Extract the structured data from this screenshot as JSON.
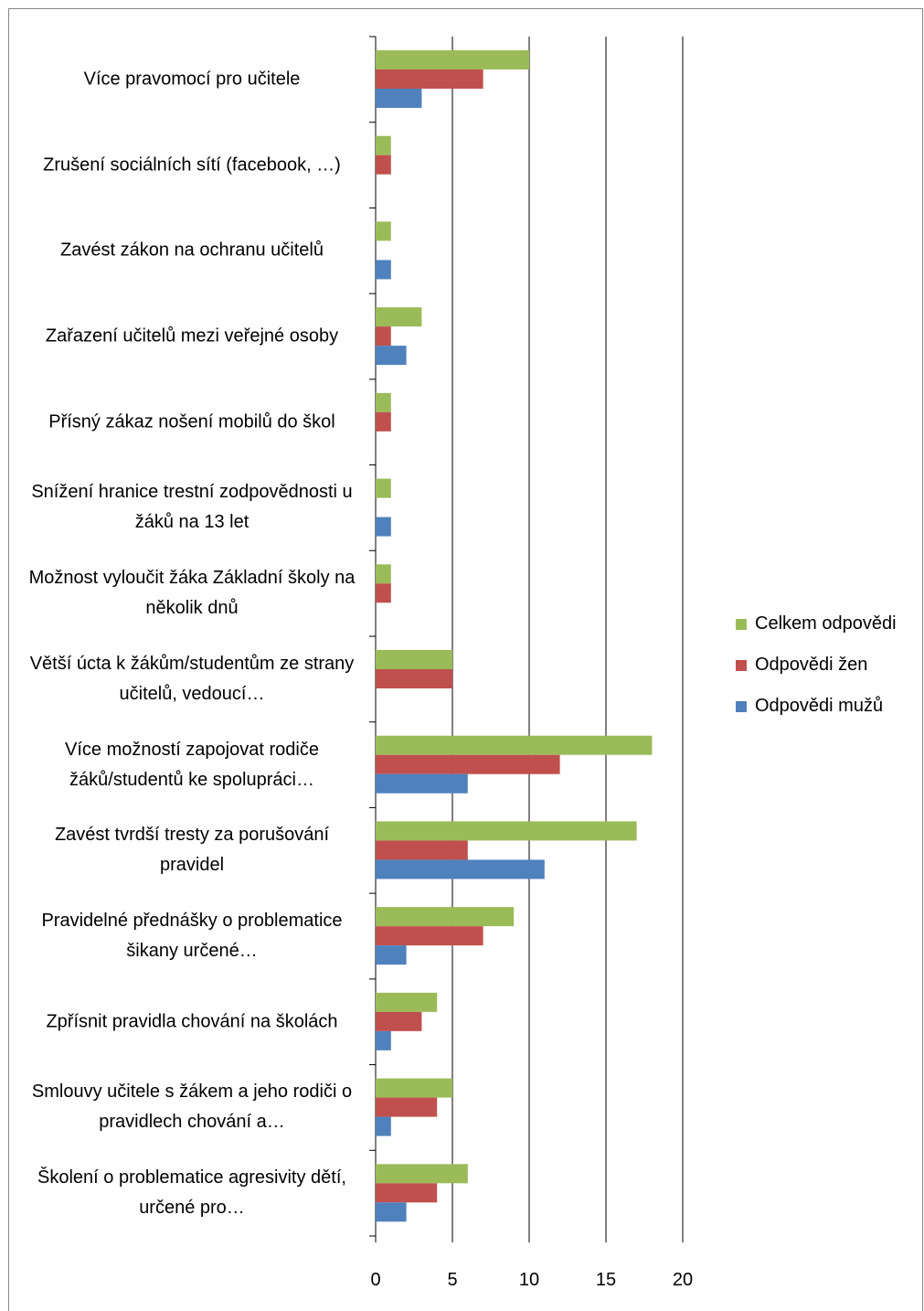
{
  "chart_data": {
    "type": "bar",
    "orientation": "horizontal",
    "categories": [
      "Více pravomocí pro učitele",
      "Zrušení sociálních sítí (facebook, …)",
      "Zavést zákon na ochranu učitelů",
      "Zařazení učitelů mezi veřejné osoby",
      "Přísný zákaz nošení mobilů do škol",
      "Snížení hranice trestní zodpovědnosti u žáků na 13 let",
      "Možnost vyloučit žáka Základní školy na několik dnů",
      "Větší úcta k žákům/studentům ze strany učitelů, vedoucí…",
      "Více možností zapojovat rodiče žáků/studentů ke spolupráci…",
      "Zavést tvrdší tresty za porušování pravidel",
      "Pravidelné přednášky o problematice šikany určené…",
      "Zpřísnit pravidla chování na školách",
      "Smlouvy učitele s žákem a jeho rodiči o pravidlech chování a…",
      "Školení o problematice agresivity dětí, určené pro…"
    ],
    "series": [
      {
        "name": "Celkem odpovědi",
        "color": "#9bbb59",
        "values": [
          10,
          1,
          1,
          3,
          1,
          1,
          1,
          5,
          18,
          17,
          9,
          4,
          5,
          6
        ]
      },
      {
        "name": "Odpovědi žen",
        "color": "#c0504d",
        "values": [
          7,
          1,
          0,
          1,
          1,
          0,
          1,
          5,
          12,
          6,
          7,
          3,
          4,
          4
        ]
      },
      {
        "name": "Odpovědi mužů",
        "color": "#4f81bd",
        "values": [
          3,
          0,
          1,
          2,
          0,
          1,
          0,
          0,
          6,
          11,
          2,
          1,
          1,
          2
        ]
      }
    ],
    "xlim": [
      0,
      20
    ],
    "xticks": [
      0,
      5,
      10,
      15,
      20
    ],
    "grid": true,
    "legend": "right"
  }
}
